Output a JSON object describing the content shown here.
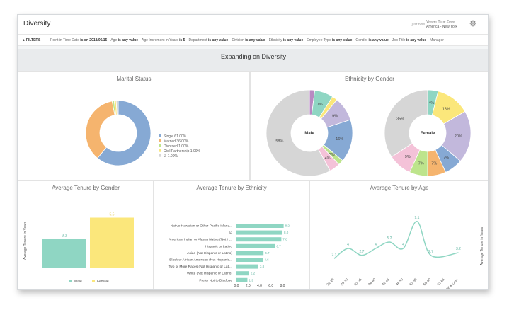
{
  "header": {
    "title": "Diversity",
    "just_now": "just now",
    "tz_label": "Viewer Time Zone",
    "tz_value": "America - New York"
  },
  "filters": {
    "label": "FILTERS",
    "items": [
      {
        "name": "Point in Time Date",
        "value": "is on 2018/06/15"
      },
      {
        "name": "Age",
        "value": "is any value"
      },
      {
        "name": "Age Increment in Years",
        "value": "is 5"
      },
      {
        "name": "Department",
        "value": "is any value"
      },
      {
        "name": "Division",
        "value": "is any value"
      },
      {
        "name": "Ethnicity",
        "value": "is any value"
      },
      {
        "name": "Employee Type",
        "value": "is any value"
      },
      {
        "name": "Gender",
        "value": "is any value"
      },
      {
        "name": "Job Title",
        "value": "is any value"
      },
      {
        "name": "Manager",
        "value": ""
      }
    ]
  },
  "section_title": "Expanding on Diversity",
  "colors": {
    "blue": "#86a9d4",
    "orange": "#f5b46e",
    "teal": "#8fd6c3",
    "yellow": "#fbe77b",
    "purple": "#c2b8dc",
    "pink": "#f4c2d8",
    "green": "#bde48c",
    "grey": "#d6d6d6",
    "magenta": "#b88ac2",
    "steel": "#7b9fd1"
  },
  "chart_data": [
    {
      "id": "marital",
      "type": "pie",
      "title": "Marital Status",
      "slices": [
        {
          "label": "Single",
          "value": 61.0,
          "color": "#86a9d4"
        },
        {
          "label": "Married",
          "value": 36.0,
          "color": "#f5b46e"
        },
        {
          "label": "Divorced",
          "value": 1.0,
          "color": "#bde48c"
        },
        {
          "label": "Civil Partnership",
          "value": 1.0,
          "color": "#fbe77b"
        },
        {
          "label": "∅",
          "value": 1.0,
          "color": "#d6d6d6"
        }
      ],
      "legend": [
        "Single 61.00%",
        "Married 36.00%",
        "Divorced 1.00%",
        "Civil Partnership 1.00%",
        "∅ 1.00%"
      ]
    },
    {
      "id": "ethnicity_gender",
      "type": "pie",
      "title": "Ethnicity by Gender",
      "donuts": [
        {
          "center_label": "Male",
          "slices": [
            {
              "value": 2,
              "label": "",
              "color": "#b88ac2"
            },
            {
              "value": 7,
              "label": "7%",
              "color": "#8fd6c3"
            },
            {
              "value": 2,
              "label": "",
              "color": "#fbe77b"
            },
            {
              "value": 9,
              "label": "9%",
              "color": "#c2b8dc"
            },
            {
              "value": 16,
              "label": "16%",
              "color": "#86a9d4"
            },
            {
              "value": 2,
              "label": "2%",
              "color": "#bde48c"
            },
            {
              "value": 4,
              "label": "4%",
              "color": "#f4c2d8"
            },
            {
              "value": 58,
              "label": "58%",
              "color": "#d6d6d6"
            }
          ]
        },
        {
          "center_label": "Female",
          "slices": [
            {
              "value": 4,
              "label": "4%",
              "color": "#8fd6c3"
            },
            {
              "value": 13,
              "label": "13%",
              "color": "#fbe77b"
            },
            {
              "value": 20,
              "label": "20%",
              "color": "#c2b8dc"
            },
            {
              "value": 7,
              "label": "7%",
              "color": "#86a9d4"
            },
            {
              "value": 7,
              "label": "7%",
              "color": "#f5b46e"
            },
            {
              "value": 7,
              "label": "7%",
              "color": "#bde48c"
            },
            {
              "value": 9,
              "label": "9%",
              "color": "#f4c2d8"
            },
            {
              "value": 35,
              "label": "35%",
              "color": "#d6d6d6"
            }
          ]
        }
      ]
    },
    {
      "id": "tenure_gender",
      "type": "bar",
      "title": "Average Tenure by Gender",
      "ylabel": "Average Tenure in Years",
      "categories": [
        "Male",
        "Female"
      ],
      "values": [
        3.2,
        5.5
      ],
      "colors": [
        "#8fd6c3",
        "#fbe77b"
      ],
      "ylim": [
        0,
        6
      ]
    },
    {
      "id": "tenure_ethnicity",
      "type": "bar",
      "title": "Average Tenure by Ethnicity",
      "xlabel": "Average Tenure in Years",
      "categories": [
        "Native Hawaiian or Other Pacific Island...",
        "∅",
        "American Indian or Alaska Native (Not H...",
        "Hispanic or Latino",
        "Asian (Not Hispanic or Latino)",
        "Black or African American (Not Hispanic...",
        "Two or More Races (Not Hispanic or Lati...",
        "White (Not Hispanic or Latino)",
        "Prefer Not to Disclose"
      ],
      "values": [
        8.2,
        8.0,
        7.8,
        6.7,
        4.7,
        4.6,
        3.8,
        2.2,
        1.9
      ],
      "xticks": [
        "0.0",
        "2.0",
        "4.0",
        "6.0",
        "8.0"
      ],
      "xlim": [
        0,
        8
      ],
      "color": "#8fd6c3"
    },
    {
      "id": "tenure_age",
      "type": "line",
      "title": "Average Tenure by Age",
      "ylabel": "Average Tenure in Years",
      "categories": [
        "21-25",
        "26-30",
        "31-35",
        "36-40",
        "41-45",
        "46-50",
        "51-55",
        "56-60",
        "61-65",
        "66 & Over"
      ],
      "values": [
        2.1,
        4.0,
        2.7,
        4.0,
        5.2,
        4.0,
        9.1,
        2.7,
        null,
        3.2
      ],
      "ylim": [
        0,
        10
      ],
      "color": "#8fd6c3"
    }
  ]
}
